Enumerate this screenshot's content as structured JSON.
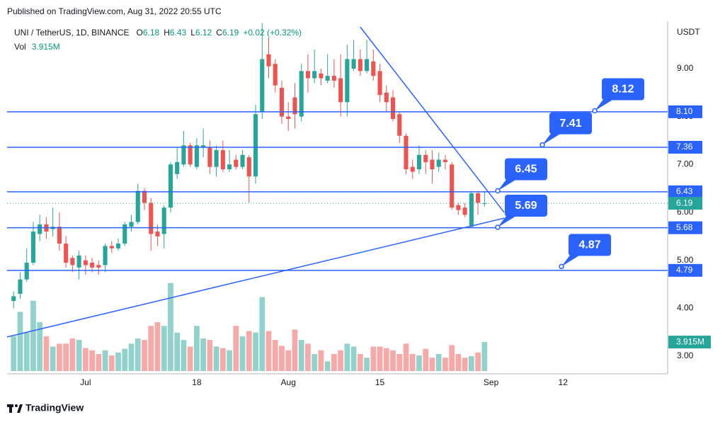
{
  "header": {
    "published": "Published on TradingView.com, Aug 31, 2022 20:55 UTC"
  },
  "footer": {
    "brand": "TradingView"
  },
  "chart_data": {
    "type": "candlestick",
    "symbol": "UNI / TetherUS, 1D, BINANCE",
    "ohlc_labels": [
      "O",
      "H",
      "L",
      "C"
    ],
    "change": "+0.02 (+0.32%)",
    "axis_unit": "USDT",
    "x": [
      "2022-06-20",
      "2022-06-21",
      "2022-06-22",
      "2022-06-23",
      "2022-06-24",
      "2022-06-25",
      "2022-06-26",
      "2022-06-27",
      "2022-06-28",
      "2022-06-29",
      "2022-06-30",
      "2022-07-01",
      "2022-07-02",
      "2022-07-03",
      "2022-07-04",
      "2022-07-05",
      "2022-07-06",
      "2022-07-07",
      "2022-07-08",
      "2022-07-09",
      "2022-07-10",
      "2022-07-11",
      "2022-07-12",
      "2022-07-13",
      "2022-07-14",
      "2022-07-15",
      "2022-07-16",
      "2022-07-17",
      "2022-07-18",
      "2022-07-19",
      "2022-07-20",
      "2022-07-21",
      "2022-07-22",
      "2022-07-23",
      "2022-07-24",
      "2022-07-25",
      "2022-07-26",
      "2022-07-27",
      "2022-07-28",
      "2022-07-29",
      "2022-07-30",
      "2022-07-31",
      "2022-08-01",
      "2022-08-02",
      "2022-08-03",
      "2022-08-04",
      "2022-08-05",
      "2022-08-06",
      "2022-08-07",
      "2022-08-08",
      "2022-08-09",
      "2022-08-10",
      "2022-08-11",
      "2022-08-12",
      "2022-08-13",
      "2022-08-14",
      "2022-08-15",
      "2022-08-16",
      "2022-08-17",
      "2022-08-18",
      "2022-08-19",
      "2022-08-20",
      "2022-08-21",
      "2022-08-22",
      "2022-08-23",
      "2022-08-24",
      "2022-08-25",
      "2022-08-26",
      "2022-08-27",
      "2022-08-28",
      "2022-08-29",
      "2022-08-30",
      "2022-08-31"
    ],
    "open": [
      4.15,
      4.3,
      4.6,
      4.95,
      5.55,
      5.75,
      5.65,
      5.7,
      5.35,
      5.05,
      4.85,
      5.0,
      4.95,
      4.9,
      4.9,
      5.3,
      5.25,
      5.35,
      5.7,
      5.8,
      6.45,
      6.2,
      5.6,
      5.55,
      6.1,
      6.8,
      7.0,
      7.4,
      6.95,
      7.35,
      7.35,
      6.95,
      7.3,
      6.9,
      7.1,
      6.95,
      7.15,
      6.75,
      8.1,
      9.3,
      9.1,
      8.6,
      8.0,
      8.4,
      8.0,
      8.95,
      8.8,
      8.9,
      8.75,
      8.85,
      8.8,
      8.3,
      9.0,
      9.2,
      8.95,
      9.15,
      8.95,
      8.5,
      8.4,
      8.05,
      7.6,
      6.95,
      6.9,
      7.2,
      7.1,
      6.95,
      7.1,
      7.0,
      6.15,
      6.1,
      5.7,
      6.4,
      6.18
    ],
    "high": [
      4.35,
      4.75,
      5.25,
      5.8,
      5.95,
      5.9,
      6.1,
      6.0,
      5.5,
      5.1,
      5.2,
      5.1,
      5.05,
      5.0,
      5.35,
      5.4,
      5.45,
      5.8,
      5.95,
      6.6,
      6.5,
      6.3,
      5.75,
      6.15,
      7.05,
      7.35,
      7.7,
      7.45,
      7.55,
      7.75,
      7.5,
      7.4,
      7.5,
      7.3,
      7.2,
      7.3,
      7.2,
      8.25,
      9.95,
      9.65,
      9.2,
      8.75,
      8.3,
      8.7,
      9.1,
      9.3,
      9.4,
      9.0,
      9.3,
      9.2,
      9.3,
      9.5,
      9.6,
      9.4,
      9.6,
      9.4,
      9.1,
      8.65,
      8.55,
      8.1,
      7.65,
      7.1,
      7.4,
      7.3,
      7.3,
      7.25,
      7.2,
      7.05,
      6.2,
      6.2,
      6.45,
      6.45,
      6.43
    ],
    "low": [
      4.0,
      4.2,
      4.55,
      4.9,
      5.4,
      5.45,
      5.5,
      5.2,
      4.85,
      4.75,
      4.6,
      4.7,
      4.75,
      4.7,
      4.75,
      5.15,
      5.2,
      5.3,
      5.6,
      5.75,
      6.05,
      5.2,
      5.3,
      5.25,
      6.0,
      6.7,
      6.95,
      6.95,
      6.9,
      7.15,
      6.8,
      6.75,
      6.85,
      6.85,
      6.9,
      6.9,
      6.2,
      6.6,
      7.95,
      8.8,
      8.5,
      7.85,
      7.7,
      7.75,
      7.9,
      8.5,
      8.7,
      8.65,
      8.7,
      8.6,
      8.0,
      8.0,
      8.95,
      8.85,
      8.9,
      8.75,
      8.3,
      8.1,
      7.9,
      7.45,
      6.8,
      6.7,
      6.8,
      6.8,
      6.6,
      6.85,
      6.9,
      6.05,
      5.95,
      5.9,
      5.68,
      5.95,
      6.12
    ],
    "close": [
      4.25,
      4.6,
      4.95,
      5.6,
      5.75,
      5.6,
      5.7,
      5.35,
      4.95,
      4.9,
      5.1,
      4.9,
      4.85,
      4.85,
      5.3,
      5.25,
      5.35,
      5.75,
      5.8,
      6.45,
      6.2,
      5.55,
      5.5,
      6.1,
      7.0,
      7.05,
      7.4,
      7.0,
      7.4,
      7.4,
      6.95,
      7.3,
      6.9,
      7.0,
      6.95,
      7.2,
      6.75,
      8.05,
      9.2,
      9.05,
      8.65,
      8.0,
      7.95,
      8.05,
      8.95,
      8.8,
      8.95,
      8.8,
      8.85,
      8.75,
      8.3,
      9.2,
      9.2,
      8.95,
      9.2,
      8.85,
      8.45,
      8.3,
      7.95,
      7.6,
      6.9,
      6.85,
      7.2,
      7.05,
      6.9,
      7.1,
      7.05,
      6.1,
      6.05,
      5.95,
      6.4,
      6.2,
      6.19
    ],
    "up_color": "#26a69a",
    "down_color": "#ef5350",
    "volume": {
      "name": "Vol",
      "values": [
        4.7,
        8.0,
        5.2,
        9.5,
        6.6,
        4.7,
        3.3,
        3.7,
        3.7,
        4.4,
        4.2,
        3.1,
        2.8,
        2.3,
        2.8,
        2.1,
        2.5,
        3.0,
        3.7,
        4.4,
        4.2,
        6.1,
        6.6,
        6.1,
        11.9,
        5.2,
        4.2,
        3.3,
        6.1,
        4.4,
        4.2,
        3.3,
        3.1,
        2.8,
        6.1,
        4.7,
        5.4,
        5.2,
        10.0,
        5.4,
        4.2,
        3.4,
        2.8,
        5.6,
        4.2,
        3.7,
        2.3,
        2.8,
        1.3,
        2.3,
        2.8,
        3.7,
        3.3,
        2.3,
        1.8,
        3.3,
        3.3,
        3.1,
        2.8,
        2.3,
        3.7,
        2.3,
        2.1,
        3.0,
        1.8,
        2.3,
        1.8,
        3.5,
        2.3,
        1.8,
        2.0,
        2.5,
        3.915
      ],
      "last_label": "3.915M",
      "ylim": [
        0,
        20
      ]
    },
    "xlim": [
      "2022-06-19",
      "2022-09-28"
    ],
    "xticks": [
      {
        "value": "2022-07-01",
        "label": "Jul"
      },
      {
        "value": "2022-07-18",
        "label": "18"
      },
      {
        "value": "2022-08-01",
        "label": "Aug"
      },
      {
        "value": "2022-08-15",
        "label": "15"
      },
      {
        "value": "2022-09-01",
        "label": "Sep"
      },
      {
        "value": "2022-09-12",
        "label": "12"
      }
    ],
    "ylim": [
      2.63,
      9.99
    ],
    "yticks": [
      {
        "value": 3,
        "label": "3.00"
      },
      {
        "value": 4,
        "label": "4.00"
      },
      {
        "value": 5,
        "label": "5.00"
      },
      {
        "value": 6,
        "label": "6.00"
      },
      {
        "value": 7,
        "label": "7.00"
      },
      {
        "value": 8,
        "label": "8.00"
      },
      {
        "value": 9,
        "label": "9.00"
      }
    ],
    "grid": false,
    "levels": [
      {
        "value": 8.1,
        "label": "8.10"
      },
      7.36,
      6.43,
      5.68,
      4.79
    ],
    "level_color": "#2962ff",
    "callouts": [
      8.12,
      7.41,
      6.45,
      5.69,
      4.87
    ],
    "trendlines": [
      {
        "x": [
          "2022-08-12",
          "2022-09-03"
        ],
        "y": [
          9.87,
          6.0
        ]
      },
      {
        "x": [
          "2022-06-19",
          "2022-09-03"
        ],
        "y": [
          3.4,
          5.88
        ]
      }
    ]
  }
}
